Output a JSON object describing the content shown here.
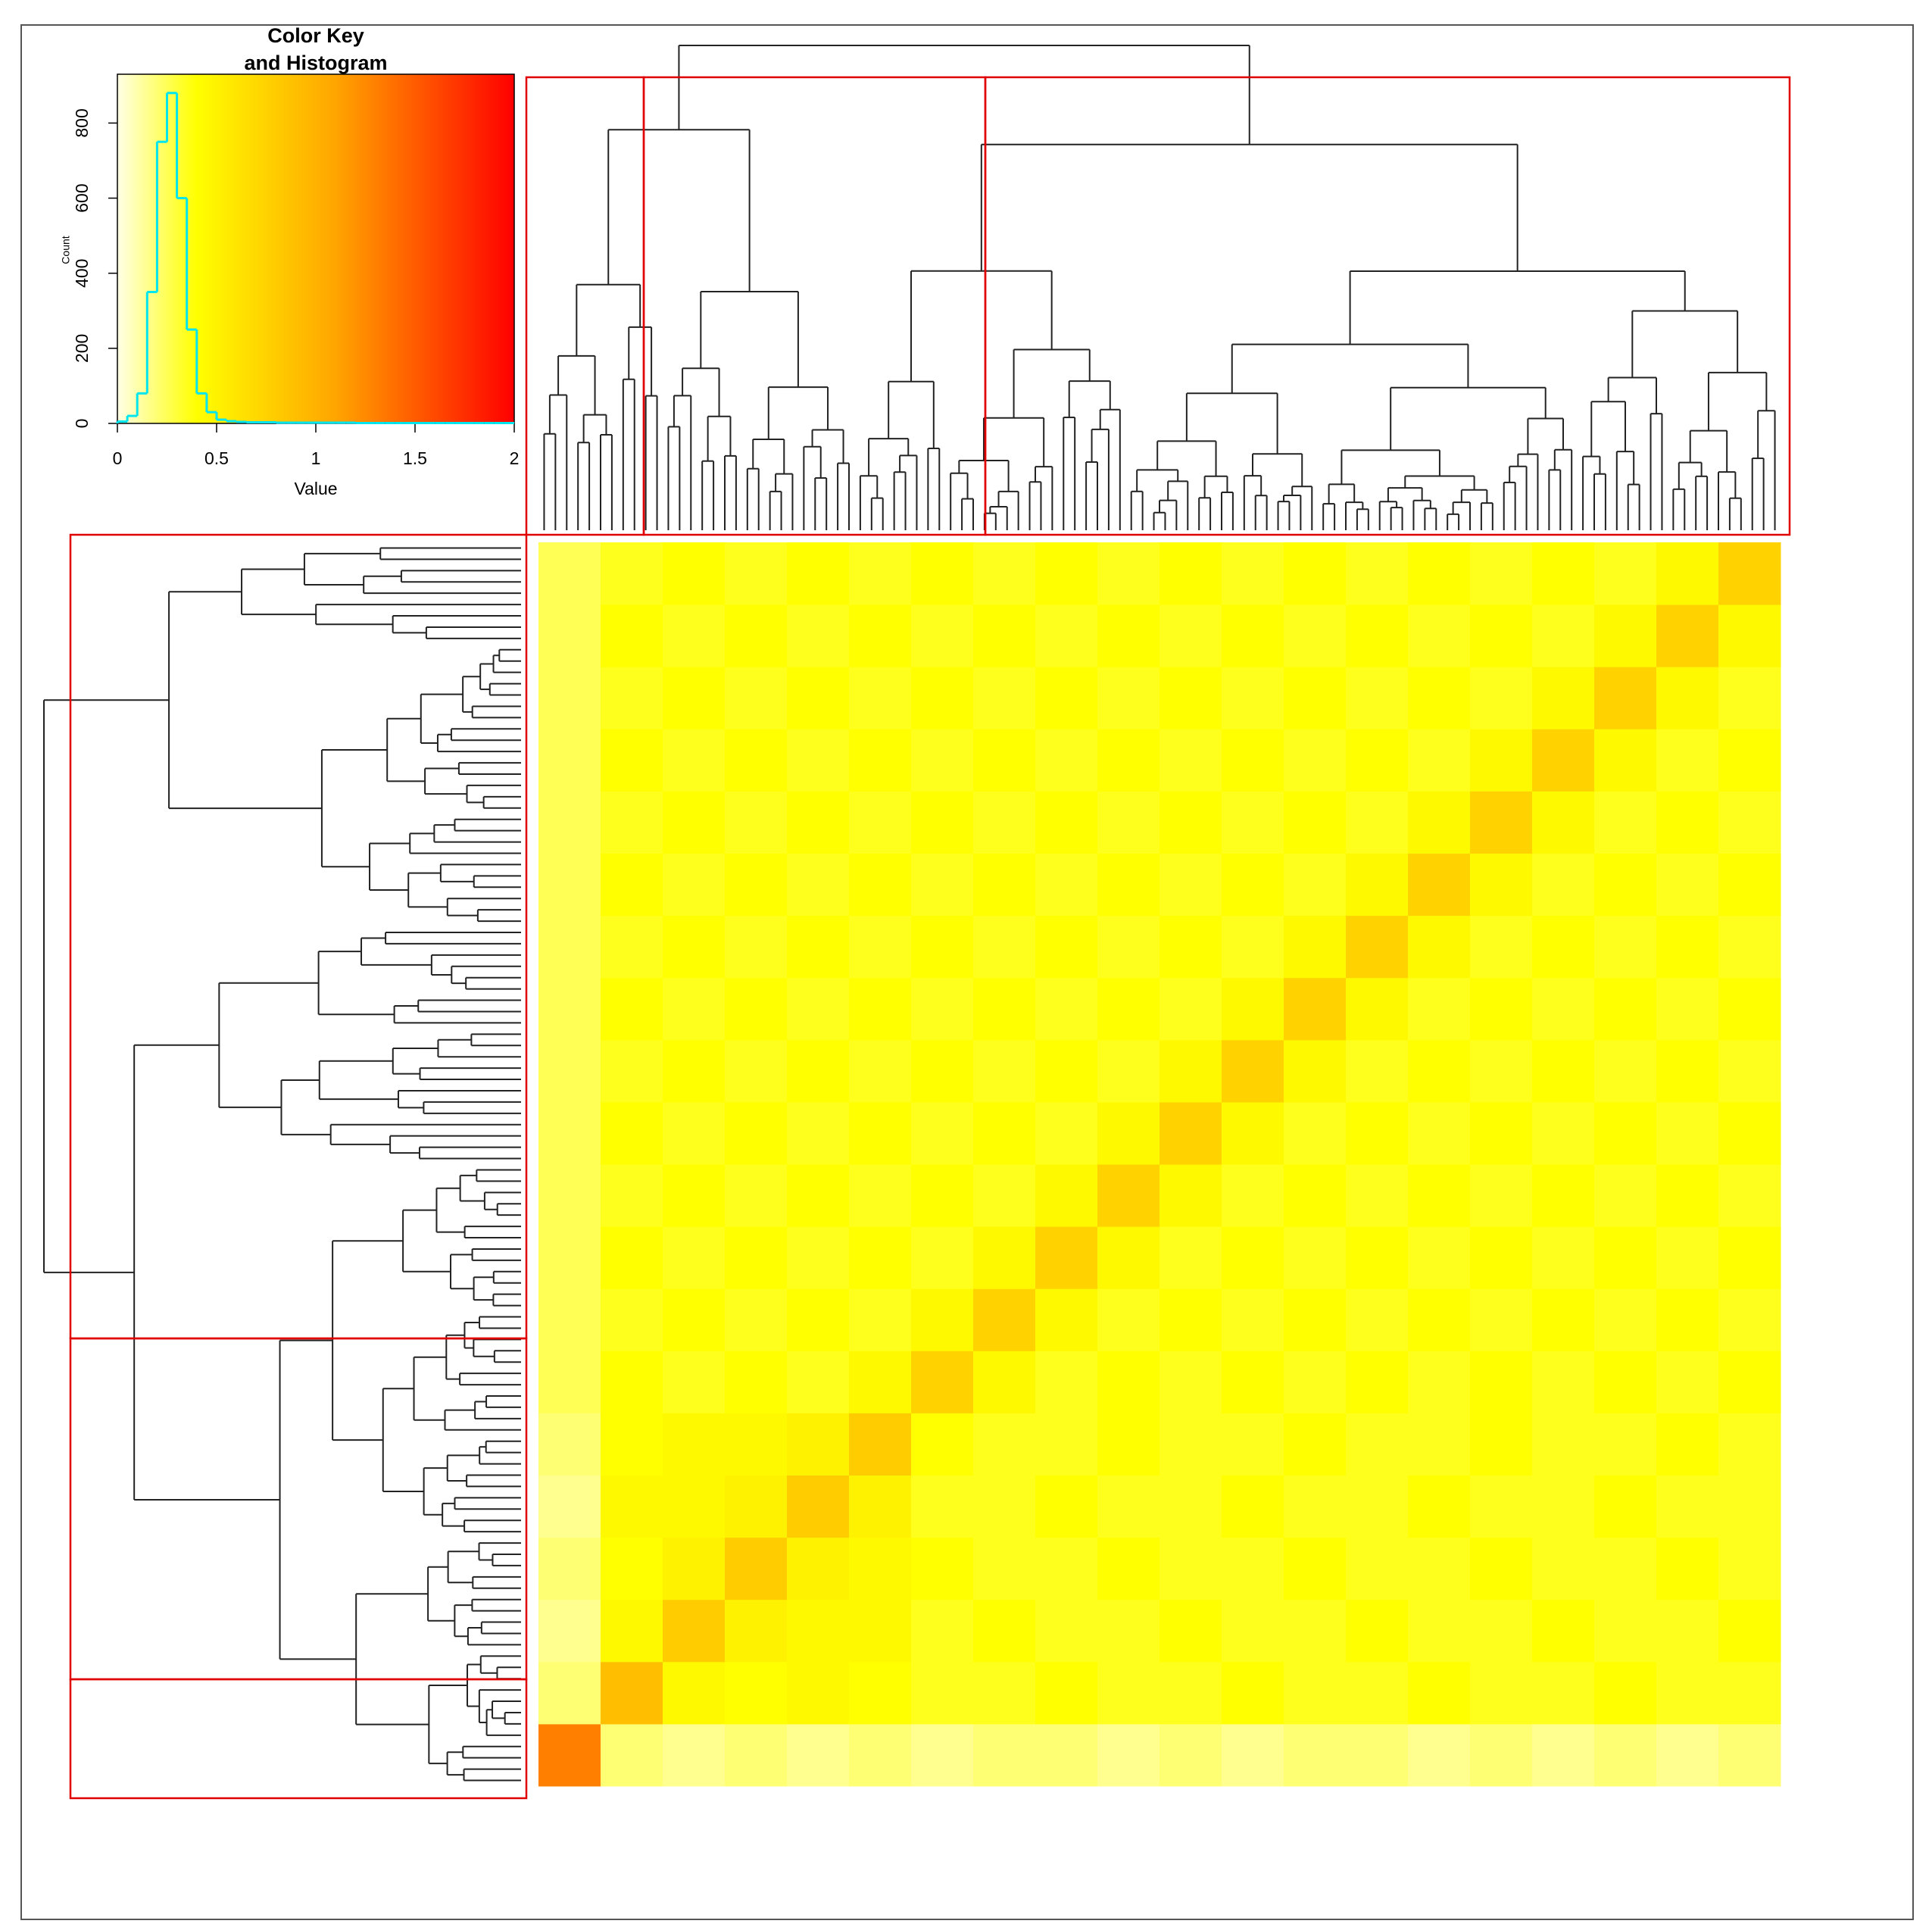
{
  "chart_data": [
    {
      "type": "heatmap",
      "colors": [
        "#ffffe6",
        "#ffff00",
        "#ffa500",
        "#ff0000"
      ],
      "color_stops": [
        0,
        0.4,
        1.1,
        2
      ],
      "z": [
        [
          1.3,
          0.2,
          0.15,
          0.2,
          0.15,
          0.2,
          0.15,
          0.2,
          0.2,
          0.15,
          0.2,
          0.15,
          0.2,
          0.2,
          0.15,
          0.2,
          0.15,
          0.2,
          0.15,
          0.2
        ],
        [
          0.2,
          0.9,
          0.45,
          0.4,
          0.45,
          0.4,
          0.35,
          0.35,
          0.4,
          0.35,
          0.35,
          0.4,
          0.35,
          0.35,
          0.4,
          0.35,
          0.35,
          0.4,
          0.35,
          0.35
        ],
        [
          0.15,
          0.45,
          0.8,
          0.5,
          0.45,
          0.45,
          0.35,
          0.4,
          0.35,
          0.35,
          0.4,
          0.35,
          0.35,
          0.4,
          0.35,
          0.35,
          0.4,
          0.35,
          0.35,
          0.4
        ],
        [
          0.2,
          0.4,
          0.5,
          0.8,
          0.5,
          0.45,
          0.4,
          0.35,
          0.35,
          0.4,
          0.35,
          0.35,
          0.4,
          0.35,
          0.35,
          0.4,
          0.35,
          0.35,
          0.4,
          0.35
        ],
        [
          0.15,
          0.45,
          0.45,
          0.5,
          0.8,
          0.5,
          0.35,
          0.35,
          0.4,
          0.35,
          0.35,
          0.4,
          0.35,
          0.35,
          0.4,
          0.35,
          0.35,
          0.4,
          0.35,
          0.35
        ],
        [
          0.2,
          0.4,
          0.45,
          0.45,
          0.5,
          0.8,
          0.4,
          0.35,
          0.35,
          0.4,
          0.35,
          0.35,
          0.4,
          0.35,
          0.35,
          0.4,
          0.35,
          0.35,
          0.4,
          0.35
        ],
        [
          0.25,
          0.4,
          0.35,
          0.4,
          0.35,
          0.45,
          0.75,
          0.45,
          0.35,
          0.4,
          0.35,
          0.4,
          0.35,
          0.4,
          0.35,
          0.4,
          0.35,
          0.4,
          0.35,
          0.4
        ],
        [
          0.25,
          0.35,
          0.4,
          0.35,
          0.4,
          0.35,
          0.45,
          0.75,
          0.45,
          0.35,
          0.4,
          0.35,
          0.4,
          0.35,
          0.4,
          0.35,
          0.4,
          0.35,
          0.4,
          0.35
        ],
        [
          0.25,
          0.4,
          0.35,
          0.4,
          0.35,
          0.4,
          0.35,
          0.45,
          0.75,
          0.45,
          0.35,
          0.4,
          0.35,
          0.4,
          0.35,
          0.4,
          0.35,
          0.4,
          0.35,
          0.4
        ],
        [
          0.25,
          0.35,
          0.4,
          0.35,
          0.4,
          0.35,
          0.4,
          0.35,
          0.45,
          0.75,
          0.45,
          0.35,
          0.4,
          0.35,
          0.4,
          0.35,
          0.4,
          0.35,
          0.4,
          0.35
        ],
        [
          0.25,
          0.4,
          0.35,
          0.4,
          0.35,
          0.4,
          0.35,
          0.4,
          0.35,
          0.45,
          0.75,
          0.45,
          0.35,
          0.4,
          0.35,
          0.4,
          0.35,
          0.4,
          0.35,
          0.4
        ],
        [
          0.25,
          0.35,
          0.4,
          0.35,
          0.4,
          0.35,
          0.4,
          0.35,
          0.4,
          0.35,
          0.45,
          0.75,
          0.45,
          0.35,
          0.4,
          0.35,
          0.4,
          0.35,
          0.4,
          0.35
        ],
        [
          0.25,
          0.4,
          0.35,
          0.4,
          0.35,
          0.4,
          0.35,
          0.4,
          0.35,
          0.4,
          0.35,
          0.45,
          0.75,
          0.45,
          0.35,
          0.4,
          0.35,
          0.4,
          0.35,
          0.4
        ],
        [
          0.25,
          0.35,
          0.4,
          0.35,
          0.4,
          0.35,
          0.4,
          0.35,
          0.4,
          0.35,
          0.4,
          0.35,
          0.45,
          0.75,
          0.45,
          0.35,
          0.4,
          0.35,
          0.4,
          0.35
        ],
        [
          0.25,
          0.4,
          0.35,
          0.4,
          0.35,
          0.4,
          0.35,
          0.4,
          0.35,
          0.4,
          0.35,
          0.4,
          0.35,
          0.45,
          0.75,
          0.45,
          0.35,
          0.4,
          0.35,
          0.4
        ],
        [
          0.25,
          0.35,
          0.4,
          0.35,
          0.4,
          0.35,
          0.4,
          0.35,
          0.4,
          0.35,
          0.4,
          0.35,
          0.4,
          0.35,
          0.45,
          0.75,
          0.45,
          0.35,
          0.4,
          0.35
        ],
        [
          0.25,
          0.4,
          0.35,
          0.4,
          0.35,
          0.4,
          0.35,
          0.4,
          0.35,
          0.4,
          0.35,
          0.4,
          0.35,
          0.4,
          0.35,
          0.45,
          0.75,
          0.45,
          0.35,
          0.4
        ],
        [
          0.25,
          0.35,
          0.4,
          0.35,
          0.4,
          0.35,
          0.4,
          0.35,
          0.4,
          0.35,
          0.4,
          0.35,
          0.4,
          0.35,
          0.4,
          0.35,
          0.45,
          0.75,
          0.45,
          0.35
        ],
        [
          0.25,
          0.4,
          0.35,
          0.4,
          0.35,
          0.4,
          0.35,
          0.4,
          0.35,
          0.4,
          0.35,
          0.4,
          0.35,
          0.4,
          0.35,
          0.4,
          0.35,
          0.45,
          0.75,
          0.45
        ],
        [
          0.25,
          0.35,
          0.4,
          0.35,
          0.4,
          0.35,
          0.4,
          0.35,
          0.4,
          0.35,
          0.4,
          0.35,
          0.4,
          0.35,
          0.4,
          0.35,
          0.4,
          0.35,
          0.45,
          0.75
        ]
      ]
    },
    {
      "type": "histogram",
      "title": [
        "Color Key",
        "and Histogram"
      ],
      "x_label": "Value",
      "y_label": "Count",
      "color": "#00e5ee",
      "xlim": [
        0,
        2
      ],
      "xticks": [
        0,
        0.5,
        1,
        1.5,
        2
      ],
      "ylim": [
        0,
        930
      ],
      "yticks": [
        0,
        200,
        400,
        600,
        800
      ],
      "bins": [
        0,
        0.05,
        0.1,
        0.15,
        0.2,
        0.25,
        0.3,
        0.35,
        0.4,
        0.45,
        0.5,
        0.55,
        0.6,
        0.65,
        0.7,
        0.75,
        0.8,
        0.85,
        0.9,
        0.95,
        1,
        1.05,
        1.1,
        1.15,
        1.2,
        1.25,
        1.3,
        1.35,
        1.4,
        1.45,
        1.5,
        1.55,
        1.6,
        1.65,
        1.7,
        1.75,
        1.8,
        1.85,
        1.9,
        1.95,
        2
      ],
      "counts": [
        5,
        20,
        80,
        350,
        750,
        880,
        600,
        250,
        80,
        30,
        10,
        6,
        4,
        3,
        3,
        3,
        2,
        2,
        2,
        2,
        2,
        2,
        2,
        2,
        1,
        1,
        1,
        1,
        1,
        1,
        1,
        1,
        1,
        1,
        1,
        1,
        1,
        1,
        1,
        1
      ]
    }
  ]
}
